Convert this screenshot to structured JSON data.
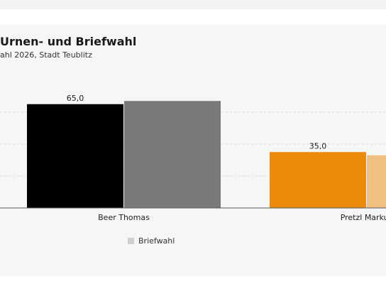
{
  "header": {
    "title": "Urnen- und Briefwahl",
    "subtitle": "ahl 2026, Stadt Teublitz"
  },
  "legend": {
    "items": [
      {
        "label": "Briefwahl",
        "color": "#cfcfcf"
      }
    ]
  },
  "chart_data": {
    "type": "bar",
    "title": "Urnen- und Briefwahl",
    "subtitle": "ahl 2026, Stadt Teublitz",
    "xlabel": "",
    "ylabel": "",
    "ylim": [
      0,
      80
    ],
    "grid": true,
    "legend_position": "bottom",
    "categories": [
      "Beer Thomas",
      "Pretzl Markus"
    ],
    "series": [
      {
        "values": [
          65.0,
          35.0
        ],
        "data_labels": [
          "65,0",
          "35,0"
        ],
        "colors": [
          "#000000",
          "#ec8a0c"
        ]
      },
      {
        "name": "Briefwahl",
        "values": [
          67.0,
          33.0
        ],
        "colors": [
          "#7a7a7a",
          "#f0c080"
        ]
      }
    ]
  }
}
